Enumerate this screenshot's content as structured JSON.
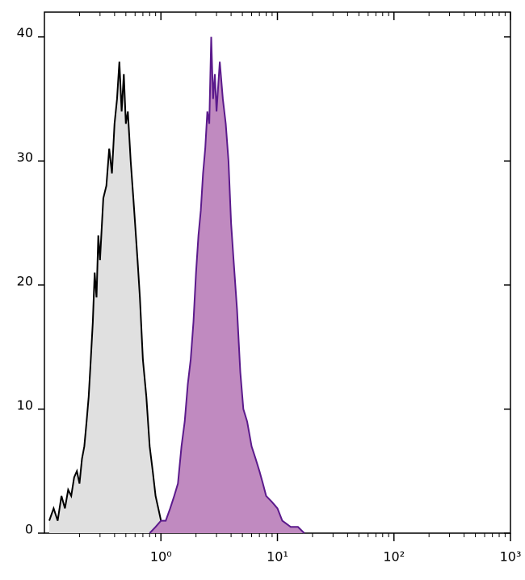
{
  "chart_data": {
    "type": "area",
    "xscale": "log",
    "xlim": [
      0.1,
      1000
    ],
    "ylim": [
      0,
      42
    ],
    "xticks": [
      {
        "value": 1,
        "label": "10⁰"
      },
      {
        "value": 10,
        "label": "10¹"
      },
      {
        "value": 100,
        "label": "10²"
      },
      {
        "value": 1000,
        "label": "10³"
      }
    ],
    "xminorticks": [
      0.2,
      0.3,
      0.4,
      0.5,
      0.6,
      0.7,
      0.8,
      0.9,
      2,
      3,
      4,
      5,
      6,
      7,
      8,
      9,
      20,
      30,
      40,
      50,
      60,
      70,
      80,
      90,
      200,
      300,
      400,
      500,
      600,
      700,
      800,
      900
    ],
    "yticks": [
      0,
      10,
      20,
      30,
      40
    ],
    "series": [
      {
        "color": "#000000",
        "fill": "#e0e0e0",
        "x": [
          0.11,
          0.12,
          0.13,
          0.14,
          0.15,
          0.16,
          0.17,
          0.18,
          0.19,
          0.2,
          0.21,
          0.22,
          0.23,
          0.24,
          0.25,
          0.26,
          0.27,
          0.28,
          0.29,
          0.3,
          0.32,
          0.34,
          0.36,
          0.38,
          0.4,
          0.42,
          0.44,
          0.46,
          0.48,
          0.5,
          0.52,
          0.55,
          0.58,
          0.6,
          0.63,
          0.66,
          0.7,
          0.75,
          0.8,
          0.85,
          0.9,
          0.95,
          1.0,
          1.05
        ],
        "values": [
          1,
          2,
          1,
          3,
          2,
          3.5,
          3,
          4.5,
          5,
          4,
          6,
          7,
          9,
          11,
          14,
          17,
          21,
          19,
          24,
          22,
          27,
          28,
          31,
          29,
          33,
          35,
          38,
          34,
          37,
          33,
          34,
          30,
          27,
          25,
          22,
          19,
          14,
          11,
          7,
          5,
          3,
          2,
          1,
          0
        ]
      },
      {
        "color": "#5b1a8c",
        "fill": "#c08ac0",
        "x": [
          0.8,
          0.9,
          1.0,
          1.1,
          1.2,
          1.3,
          1.4,
          1.5,
          1.6,
          1.7,
          1.8,
          1.9,
          2.0,
          2.1,
          2.2,
          2.3,
          2.4,
          2.5,
          2.6,
          2.7,
          2.8,
          2.9,
          3.0,
          3.2,
          3.4,
          3.6,
          3.8,
          4.0,
          4.2,
          4.5,
          4.8,
          5.1,
          5.5,
          6.0,
          6.5,
          7.0,
          7.5,
          8.0,
          9.0,
          10,
          11,
          13,
          15,
          17
        ],
        "values": [
          0,
          0.5,
          1,
          1,
          2,
          3,
          4,
          7,
          9,
          12,
          14,
          17,
          21,
          24,
          26,
          29,
          31,
          34,
          33,
          40,
          35,
          37,
          34,
          38,
          35,
          33,
          30,
          25,
          22,
          18,
          13,
          10,
          9,
          7,
          6,
          5,
          4,
          3,
          2.5,
          2,
          1,
          0.5,
          0.5,
          0
        ]
      }
    ]
  }
}
